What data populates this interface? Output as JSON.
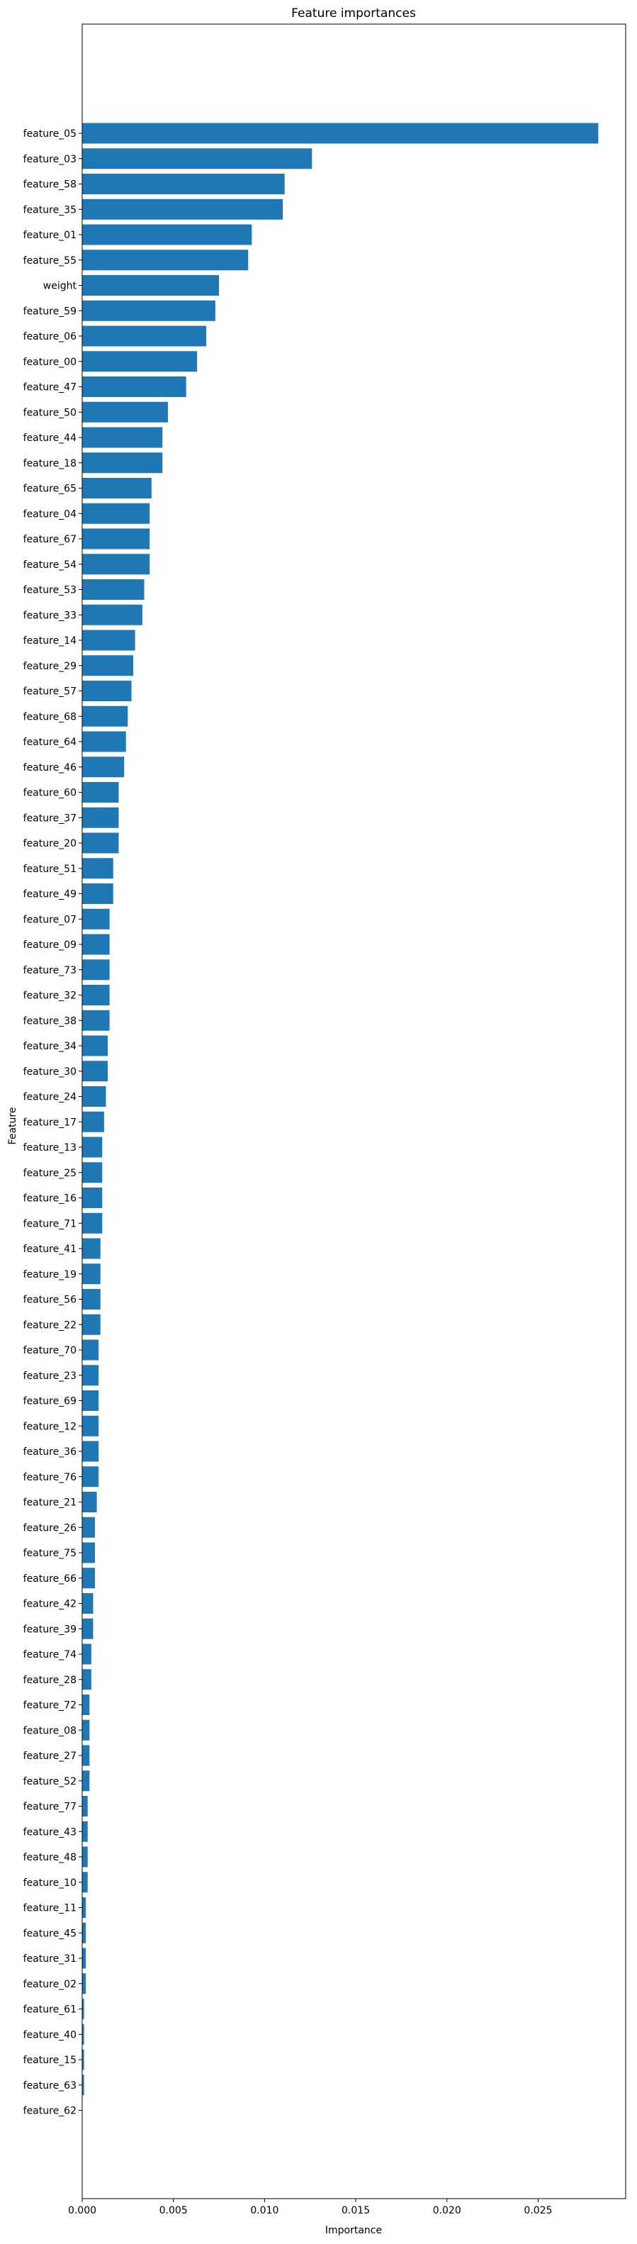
{
  "chart_data": {
    "type": "bar",
    "orientation": "horizontal",
    "title": "Feature importances",
    "xlabel": "Importance",
    "ylabel": "Feature",
    "xlim": [
      0,
      0.0298
    ],
    "xticks": [
      0.0,
      0.005,
      0.01,
      0.015,
      0.02,
      0.025
    ],
    "xtick_labels": [
      "0.000",
      "0.005",
      "0.010",
      "0.015",
      "0.020",
      "0.025"
    ],
    "bar_color": "#1f77b4",
    "grid": false,
    "categories": [
      "feature_05",
      "feature_03",
      "feature_58",
      "feature_35",
      "feature_01",
      "feature_55",
      "weight",
      "feature_59",
      "feature_06",
      "feature_00",
      "feature_47",
      "feature_50",
      "feature_44",
      "feature_18",
      "feature_65",
      "feature_04",
      "feature_67",
      "feature_54",
      "feature_53",
      "feature_33",
      "feature_14",
      "feature_29",
      "feature_57",
      "feature_68",
      "feature_64",
      "feature_46",
      "feature_60",
      "feature_37",
      "feature_20",
      "feature_51",
      "feature_49",
      "feature_07",
      "feature_09",
      "feature_73",
      "feature_32",
      "feature_38",
      "feature_34",
      "feature_30",
      "feature_24",
      "feature_17",
      "feature_13",
      "feature_25",
      "feature_16",
      "feature_71",
      "feature_41",
      "feature_19",
      "feature_56",
      "feature_22",
      "feature_70",
      "feature_23",
      "feature_69",
      "feature_12",
      "feature_36",
      "feature_76",
      "feature_21",
      "feature_26",
      "feature_75",
      "feature_66",
      "feature_42",
      "feature_39",
      "feature_74",
      "feature_28",
      "feature_72",
      "feature_08",
      "feature_27",
      "feature_52",
      "feature_77",
      "feature_43",
      "feature_48",
      "feature_10",
      "feature_11",
      "feature_45",
      "feature_31",
      "feature_02",
      "feature_61",
      "feature_40",
      "feature_15",
      "feature_63",
      "feature_62"
    ],
    "values": [
      0.0283,
      0.0126,
      0.0111,
      0.011,
      0.0093,
      0.0091,
      0.0075,
      0.0073,
      0.0068,
      0.0063,
      0.0057,
      0.0047,
      0.0044,
      0.0044,
      0.0038,
      0.0037,
      0.0037,
      0.0037,
      0.0034,
      0.0033,
      0.0029,
      0.0028,
      0.0027,
      0.0025,
      0.0024,
      0.0023,
      0.002,
      0.002,
      0.002,
      0.0017,
      0.0017,
      0.0015,
      0.0015,
      0.0015,
      0.0015,
      0.0015,
      0.0014,
      0.0014,
      0.0013,
      0.0012,
      0.0011,
      0.0011,
      0.0011,
      0.0011,
      0.001,
      0.001,
      0.001,
      0.001,
      0.0009,
      0.0009,
      0.0009,
      0.0009,
      0.0009,
      0.0009,
      0.0008,
      0.0007,
      0.0007,
      0.0007,
      0.0006,
      0.0006,
      0.0005,
      0.0005,
      0.0004,
      0.0004,
      0.0004,
      0.0004,
      0.0003,
      0.0003,
      0.0003,
      0.0003,
      0.0002,
      0.0002,
      0.0002,
      0.0002,
      0.0001,
      0.0001,
      0.0001,
      0.0001,
      0.0
    ]
  }
}
